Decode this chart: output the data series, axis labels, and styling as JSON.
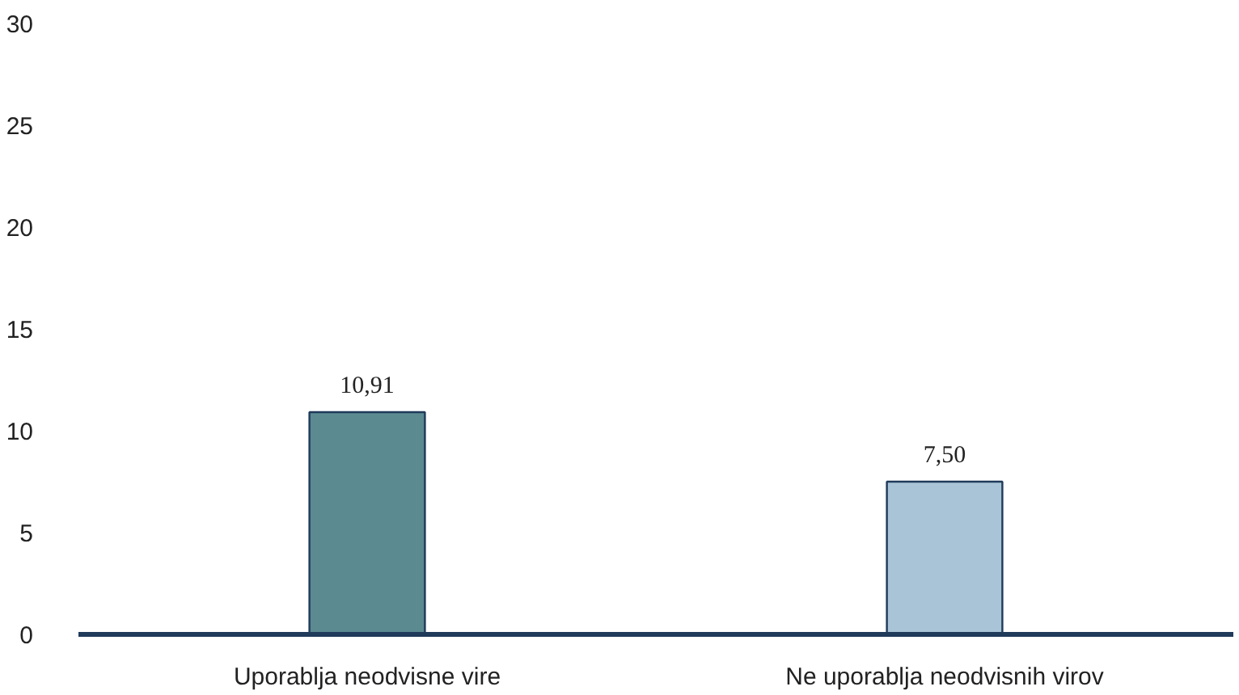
{
  "chart_data": {
    "type": "bar",
    "categories": [
      "Uporablja neodvisne vire",
      "Ne uporablja neodvisnih virov"
    ],
    "values": [
      10.91,
      7.5
    ],
    "colors": [
      "#5b8a91",
      "#a9c4d6"
    ],
    "value_labels": [
      "10,91",
      "7,50"
    ],
    "ylim": [
      0,
      30
    ],
    "yticks": [
      0,
      5,
      10,
      15,
      20,
      25,
      30
    ]
  }
}
